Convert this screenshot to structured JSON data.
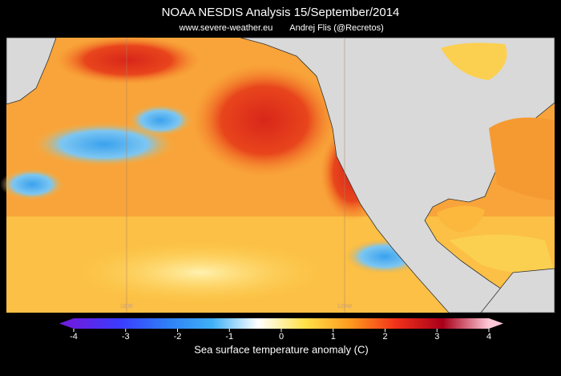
{
  "map": {
    "title": "NOAA NESDIS Analysis  15/September/2014",
    "source": "www.severe-weather.eu",
    "author": "Andrej Flis (@Recretos)",
    "longitude_labels": [
      "180E",
      "120W"
    ]
  },
  "colorbar": {
    "label": "Sea surface temperature anomaly (C)",
    "lim": [
      -4,
      4
    ],
    "ticks": [
      -4,
      -3,
      -2,
      -1,
      0,
      1,
      2,
      3,
      4
    ],
    "colors": [
      "#6a1fe0",
      "#3a3cff",
      "#2f7df5",
      "#3fb0f5",
      "#ffffff",
      "#ffe14a",
      "#ff9a1e",
      "#f0301a",
      "#a8001a",
      "#ffc8d8"
    ]
  }
}
